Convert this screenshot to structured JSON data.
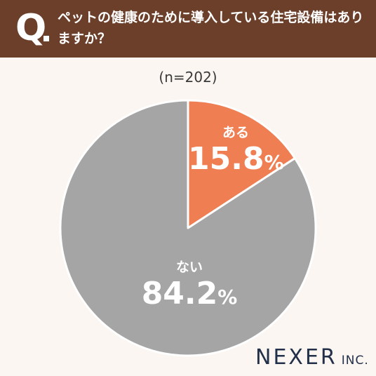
{
  "header": {
    "q_mark": "Q",
    "question": "ペットの健康のために導入している住宅設備はありますか？"
  },
  "sample_label": "(n=202)",
  "chart_data": {
    "type": "pie",
    "categories": [
      "ある",
      "ない"
    ],
    "values": [
      15.8,
      84.2
    ],
    "unit": "%",
    "colors": [
      "#ef7e53",
      "#a5a5a5"
    ],
    "start": "12 o'clock",
    "direction": "clockwise"
  },
  "brand": {
    "name": "NEXER",
    "suffix": "INC."
  }
}
